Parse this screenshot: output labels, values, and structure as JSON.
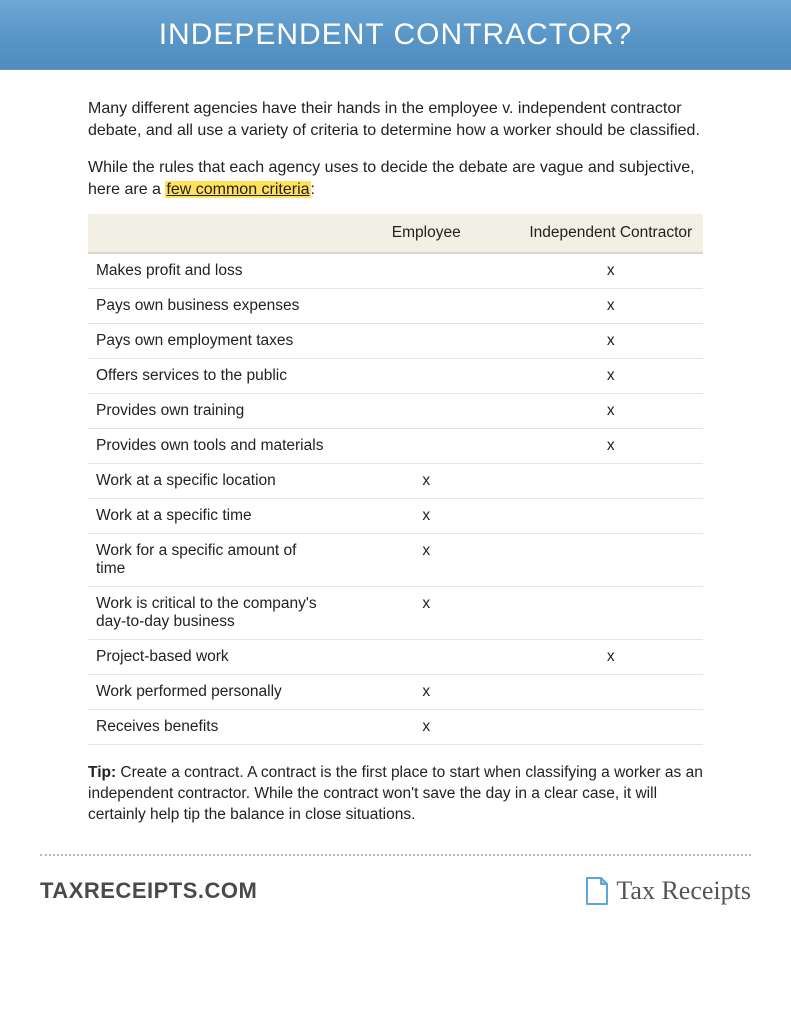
{
  "header": {
    "title": "INDEPENDENT CONTRACTOR?"
  },
  "intro": {
    "p1": "Many different agencies have their hands in the employee v. independent contractor debate, and all use a variety of criteria to determine how a worker should be classified.",
    "p2_a": "While the rules that each agency uses to decide the debate are vague and subjective, here are a ",
    "p2_highlight": "few common criteria",
    "p2_b": ":"
  },
  "table": {
    "columns": [
      "",
      "Employee",
      "Independent Contractor"
    ],
    "mark": "x",
    "rows": [
      {
        "criteria": "Makes profit and loss",
        "employee": false,
        "contractor": true
      },
      {
        "criteria": "Pays own business expenses",
        "employee": false,
        "contractor": true
      },
      {
        "criteria": "Pays own employment taxes",
        "employee": false,
        "contractor": true
      },
      {
        "criteria": "Offers services to the public",
        "employee": false,
        "contractor": true
      },
      {
        "criteria": "Provides own training",
        "employee": false,
        "contractor": true
      },
      {
        "criteria": "Provides own tools and materials",
        "employee": false,
        "contractor": true
      },
      {
        "criteria": "Work at a specific location",
        "employee": true,
        "contractor": false
      },
      {
        "criteria": "Work at a specific time",
        "employee": true,
        "contractor": false
      },
      {
        "criteria": "Work for a specific amount of time",
        "employee": true,
        "contractor": false
      },
      {
        "criteria": "Work is critical to the company's day-to-day business",
        "employee": true,
        "contractor": false
      },
      {
        "criteria": "Project-based work",
        "employee": false,
        "contractor": true
      },
      {
        "criteria": "Work performed personally",
        "employee": true,
        "contractor": false
      },
      {
        "criteria": "Receives benefits",
        "employee": true,
        "contractor": false
      }
    ]
  },
  "tip": {
    "label": "Tip:",
    "text": "  Create a contract. A contract is the first place to start when classifying a worker as an independent contractor. While the contract won't save the day in a clear case, it will certainly help tip the balance in close situations."
  },
  "footer": {
    "left": "TAXRECEIPTS.COM",
    "right": "Tax Receipts"
  },
  "colors": {
    "header_gradient_top": "#6da8d6",
    "header_gradient_bottom": "#4f8cbf",
    "highlight": "#ffe15a",
    "table_header_bg": "#f2efe4",
    "icon_outline": "#5aa7e0",
    "icon_fold": "#f2c94c"
  }
}
